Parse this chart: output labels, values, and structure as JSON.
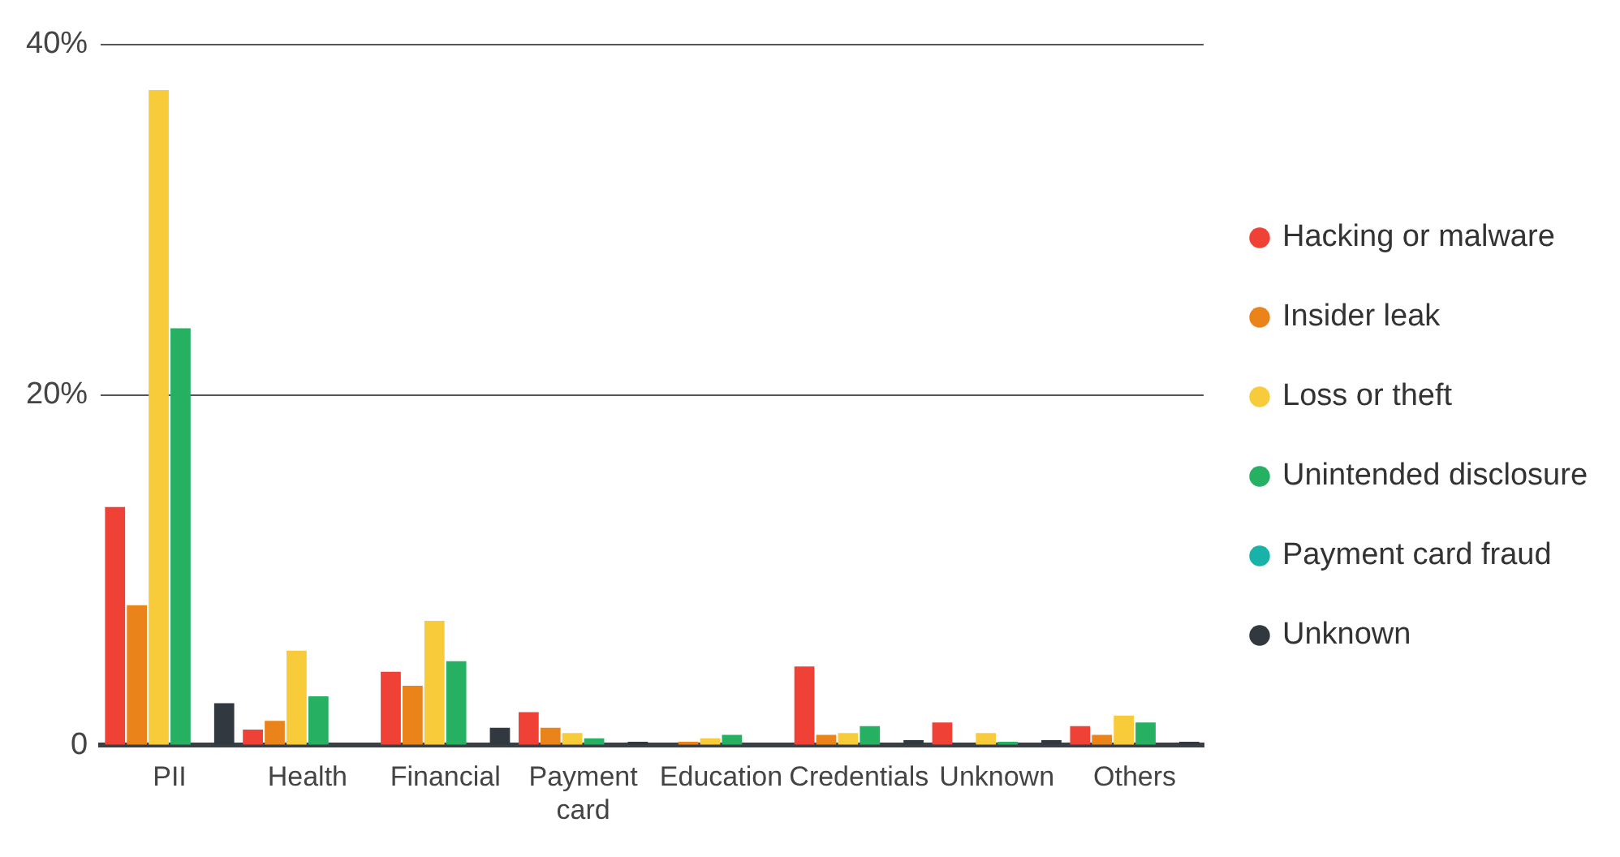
{
  "chart_data": {
    "type": "bar",
    "categories": [
      "PII",
      "Health",
      "Financial",
      "Payment card",
      "Education",
      "Credentials",
      "Unknown",
      "Others"
    ],
    "series": [
      {
        "name": "Hacking or malware",
        "color": "#ef4135",
        "values": [
          13.6,
          0.9,
          4.2,
          1.9,
          0,
          4.5,
          1.3,
          1.1
        ]
      },
      {
        "name": "Insider leak",
        "color": "#eb831b",
        "values": [
          8.0,
          1.4,
          3.4,
          1.0,
          0.2,
          0.6,
          0,
          0.6
        ]
      },
      {
        "name": "Loss or theft",
        "color": "#f8cb3a",
        "values": [
          37.4,
          5.4,
          7.1,
          0.7,
          0.4,
          0.7,
          0.7,
          1.7
        ]
      },
      {
        "name": "Unintended disclosure",
        "color": "#25b062",
        "values": [
          23.8,
          2.8,
          4.8,
          0.4,
          0.6,
          1.1,
          0.2,
          1.3
        ]
      },
      {
        "name": "Payment card fraud",
        "color": "#18b2a8",
        "values": [
          0,
          0,
          0,
          0,
          0,
          0,
          0,
          0
        ]
      },
      {
        "name": "Unknown",
        "color": "#313840",
        "values": [
          2.4,
          null,
          1.0,
          0.2,
          null,
          0.3,
          0.3,
          0.2
        ]
      }
    ],
    "ylim": [
      0,
      40
    ],
    "yticks": [
      {
        "value": 0,
        "label": "0"
      },
      {
        "value": 20,
        "label": "20%"
      },
      {
        "value": 40,
        "label": "40%"
      }
    ],
    "grid": "y",
    "legend": "right",
    "marker": "circle"
  }
}
